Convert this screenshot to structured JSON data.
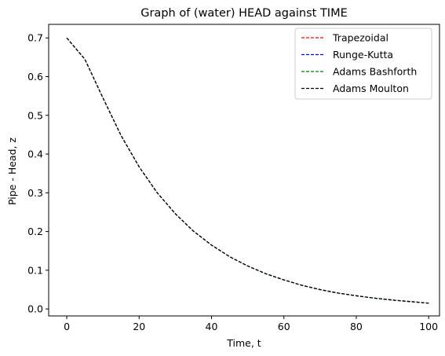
{
  "chart_data": {
    "type": "line",
    "title": "Graph of (water) HEAD against TIME",
    "xlabel": "Time, t",
    "ylabel": "Pipe - Head, z",
    "xlim": [
      -5,
      103
    ],
    "ylim": [
      -0.018,
      0.735
    ],
    "xticks": [
      0,
      20,
      40,
      60,
      80,
      100
    ],
    "yticks": [
      0.0,
      0.1,
      0.2,
      0.3,
      0.4,
      0.5,
      0.6,
      0.7
    ],
    "grid": false,
    "legend_position": "top-right",
    "line_style": "dashed",
    "x": [
      0,
      5,
      10,
      15,
      20,
      25,
      30,
      35,
      40,
      45,
      50,
      55,
      60,
      65,
      70,
      75,
      80,
      85,
      90,
      95,
      100
    ],
    "series": [
      {
        "name": "Trapezoidal",
        "color": "#ff0000",
        "values": [
          0.7,
          0.645,
          0.545,
          0.448,
          0.367,
          0.3,
          0.246,
          0.201,
          0.165,
          0.135,
          0.111,
          0.091,
          0.075,
          0.061,
          0.05,
          0.041,
          0.034,
          0.028,
          0.023,
          0.019,
          0.015
        ]
      },
      {
        "name": "Runge-Kutta",
        "color": "#0000ff",
        "values": [
          0.7,
          0.645,
          0.545,
          0.448,
          0.367,
          0.3,
          0.246,
          0.201,
          0.165,
          0.135,
          0.111,
          0.091,
          0.075,
          0.061,
          0.05,
          0.041,
          0.034,
          0.028,
          0.023,
          0.019,
          0.015
        ]
      },
      {
        "name": "Adams Bashforth",
        "color": "#008000",
        "values": [
          0.7,
          0.645,
          0.545,
          0.448,
          0.367,
          0.3,
          0.246,
          0.201,
          0.165,
          0.135,
          0.111,
          0.091,
          0.075,
          0.061,
          0.05,
          0.041,
          0.034,
          0.028,
          0.023,
          0.019,
          0.015
        ]
      },
      {
        "name": "Adams Moulton",
        "color": "#000000",
        "values": [
          0.7,
          0.645,
          0.545,
          0.448,
          0.367,
          0.3,
          0.246,
          0.201,
          0.165,
          0.135,
          0.111,
          0.091,
          0.075,
          0.061,
          0.05,
          0.041,
          0.034,
          0.028,
          0.023,
          0.019,
          0.015
        ]
      }
    ]
  }
}
